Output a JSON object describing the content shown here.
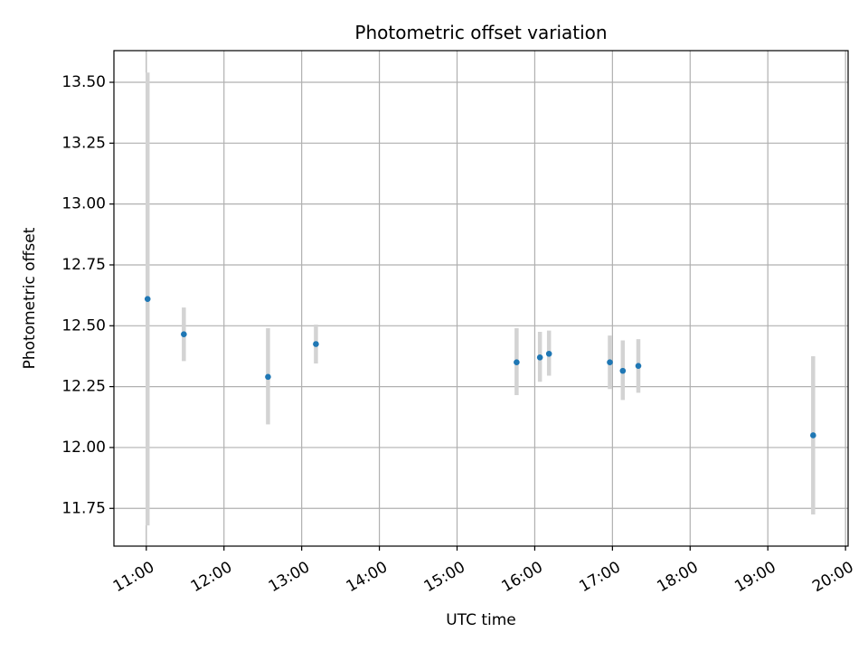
{
  "chart_data": {
    "type": "scatter",
    "title": "Photometric offset variation",
    "xlabel": "UTC time",
    "ylabel": "Photometric offset",
    "grid": true,
    "x_ticks": [
      "11:00",
      "12:00",
      "13:00",
      "14:00",
      "15:00",
      "16:00",
      "17:00",
      "18:00",
      "19:00",
      "20:00"
    ],
    "y_ticks": [
      "11.75",
      "12.00",
      "12.25",
      "12.50",
      "12.75",
      "13.00",
      "13.25",
      "13.50"
    ],
    "xlim": [
      "10:35",
      "20:02"
    ],
    "ylim": [
      11.595,
      13.63
    ],
    "points": [
      {
        "time": "11:01",
        "y": 12.61,
        "err_low": 11.68,
        "err_high": 13.54
      },
      {
        "time": "11:29",
        "y": 12.465,
        "err_low": 12.355,
        "err_high": 12.575
      },
      {
        "time": "12:34",
        "y": 12.29,
        "err_low": 12.095,
        "err_high": 12.49
      },
      {
        "time": "13:11",
        "y": 12.425,
        "err_low": 12.345,
        "err_high": 12.505
      },
      {
        "time": "15:46",
        "y": 12.35,
        "err_low": 12.215,
        "err_high": 12.49
      },
      {
        "time": "16:04",
        "y": 12.37,
        "err_low": 12.27,
        "err_high": 12.475
      },
      {
        "time": "16:11",
        "y": 12.385,
        "err_low": 12.295,
        "err_high": 12.48
      },
      {
        "time": "16:58",
        "y": 12.35,
        "err_low": 12.24,
        "err_high": 12.46
      },
      {
        "time": "17:08",
        "y": 12.315,
        "err_low": 12.195,
        "err_high": 12.44
      },
      {
        "time": "17:20",
        "y": 12.335,
        "err_low": 12.225,
        "err_high": 12.445
      },
      {
        "time": "19:35",
        "y": 12.05,
        "err_low": 11.725,
        "err_high": 12.375
      }
    ],
    "colors": {
      "marker": "#1f77b4",
      "errorbar": "#d3d3d3",
      "grid": "#b0b0b0",
      "axes": "#000000"
    }
  }
}
